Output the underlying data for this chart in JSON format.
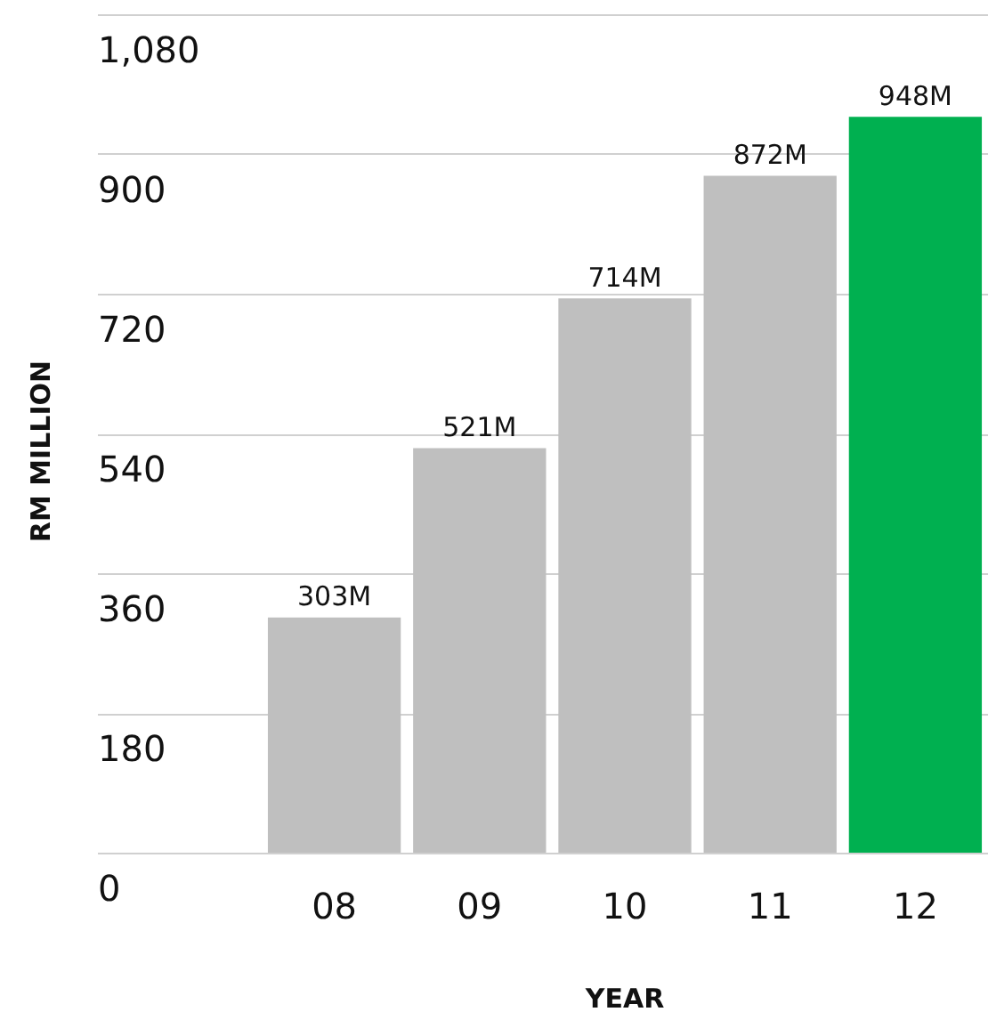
{
  "chart_data": {
    "type": "bar",
    "xlabel": "YEAR",
    "ylabel": "RM MILLION",
    "categories": [
      "08",
      "09",
      "10",
      "11",
      "12"
    ],
    "values": [
      303,
      521,
      714,
      872,
      948
    ],
    "colors": [
      "#bfbfbf",
      "#bfbfbf",
      "#bfbfbf",
      "#bfbfbf",
      "#00b050"
    ],
    "value_labels": [
      "303M",
      "521M",
      "714M",
      "872M",
      "948M"
    ],
    "ylim": [
      0,
      1080
    ],
    "yticks": [
      0,
      180,
      360,
      540,
      720,
      900,
      {
        "value": 1080,
        "label": "1,080"
      }
    ],
    "grid": "y",
    "legend": false
  }
}
